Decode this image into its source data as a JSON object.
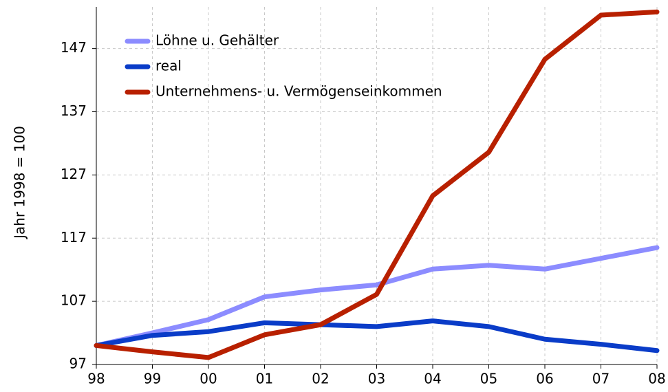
{
  "chart_data": {
    "type": "line",
    "ylabel": "Jahr 1998 = 100",
    "categories": [
      "98",
      "99",
      "00",
      "01",
      "02",
      "03",
      "04",
      "05",
      "06",
      "07",
      "08"
    ],
    "series": [
      {
        "name": "Löhne u. Gehälter",
        "color": "#8c8cff",
        "values": [
          100,
          102,
          104.1,
          107.7,
          108.8,
          109.6,
          112.1,
          112.7,
          112.1,
          113.8,
          115.5
        ]
      },
      {
        "name": "real",
        "color": "#0a3cc8",
        "values": [
          100,
          101.6,
          102.2,
          103.6,
          103.3,
          103,
          103.9,
          103,
          101,
          100.2,
          99.2
        ]
      },
      {
        "name": "Unternehmens- u. Vermögenseinkommen",
        "color": "#b82000",
        "values": [
          100,
          99,
          98.1,
          101.7,
          103.3,
          108.1,
          123.7,
          130.6,
          145.3,
          152.3,
          152.8
        ]
      }
    ],
    "ylim": [
      97,
      153.6
    ],
    "yticks": [
      97,
      107,
      117,
      127,
      137,
      147
    ],
    "grid": true,
    "legend": "top-left"
  }
}
